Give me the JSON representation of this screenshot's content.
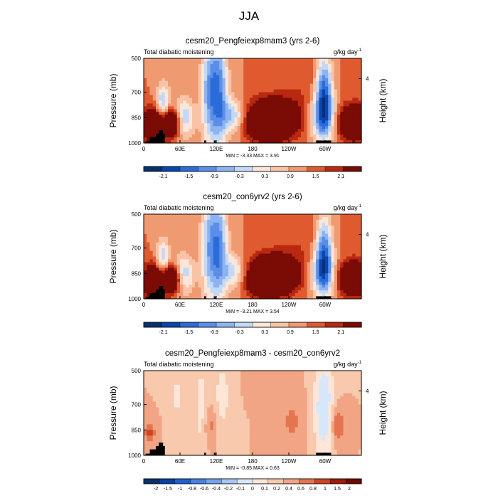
{
  "figure": {
    "title": "JJA",
    "colors": {
      "ramp11": [
        "#08306b",
        "#0a45b0",
        "#2b6cd9",
        "#5a8ee8",
        "#8db3f0",
        "#c4d9f7",
        "#fde6d8",
        "#f9c3a6",
        "#f09a72",
        "#e05a30",
        "#b8290f",
        "#7a0b05"
      ],
      "ramp13": [
        "#08306b",
        "#0a3ea8",
        "#1f5fd0",
        "#4a82e4",
        "#76a2ec",
        "#a8c5f4",
        "#d6e6fb",
        "#fde6d8",
        "#f8c9ad",
        "#f2a584",
        "#e57550",
        "#cc4422",
        "#a01a0a",
        "#6e0804"
      ],
      "land": "#000000"
    }
  },
  "chart_data": [
    {
      "type": "heatmap",
      "panel": "top",
      "title": "cesm20_Pengfeiexp8mam3 (yrs 2-6)",
      "left_label": "Total diabatic moistening",
      "units_base": "g/kg day",
      "units_exp": "-1",
      "ylabel": "Pressure (mb)",
      "ylabel_right": "Height (km)",
      "yticks": [
        "500",
        "700",
        "850",
        "1000"
      ],
      "ytick_values": [
        500,
        700,
        850,
        1000
      ],
      "yrange": [
        1000,
        500
      ],
      "right_ticks": [
        "4"
      ],
      "right_tick_pressure": 620,
      "xticks": [
        "0",
        "60E",
        "120E",
        "180",
        "120W",
        "60W"
      ],
      "xtick_values": [
        0,
        60,
        120,
        180,
        240,
        300
      ],
      "xrange": [
        0,
        360
      ],
      "stats": "MIN =  -3.33  MAX =  3.91",
      "colorbar_labels": [
        "-2.1",
        "-1.5",
        "-0.9",
        "-0.3",
        "0.3",
        "0.9",
        "1.5",
        "2.1"
      ],
      "colorbar_levels": [
        -2.4,
        -2.1,
        -1.8,
        -1.5,
        -1.2,
        -0.9,
        -0.6,
        -0.3,
        0,
        0.3,
        0.6,
        0.9,
        1.2,
        1.5,
        1.8,
        2.1,
        2.4
      ],
      "color_range": [
        -2.4,
        2.4
      ],
      "features": [
        {
          "lon": 45,
          "p": 880,
          "slon": 14,
          "sp": 60,
          "v": 2.3
        },
        {
          "lon": 15,
          "p": 900,
          "slon": 12,
          "sp": 70,
          "v": 1.8
        },
        {
          "lon": 32,
          "p": 780,
          "slon": 8,
          "sp": 90,
          "v": -1.4
        },
        {
          "lon": 65,
          "p": 860,
          "slon": 12,
          "sp": 80,
          "v": -1.6
        },
        {
          "lon": 108,
          "p": 700,
          "slon": 10,
          "sp": 230,
          "v": -1.3
        },
        {
          "lon": 125,
          "p": 700,
          "slon": 10,
          "sp": 230,
          "v": -1.6
        },
        {
          "lon": 148,
          "p": 840,
          "slon": 14,
          "sp": 70,
          "v": -1.2
        },
        {
          "lon": 215,
          "p": 850,
          "slon": 28,
          "sp": 75,
          "v": 2.5
        },
        {
          "lon": 205,
          "p": 910,
          "slon": 22,
          "sp": 50,
          "v": 1.5
        },
        {
          "lon": 298,
          "p": 700,
          "slon": 10,
          "sp": 150,
          "v": -2.1
        },
        {
          "lon": 296,
          "p": 860,
          "slon": 15,
          "sp": 90,
          "v": -1.3
        },
        {
          "lon": 348,
          "p": 880,
          "slon": 18,
          "sp": 70,
          "v": 2.2
        },
        {
          "lon": 270,
          "p": 620,
          "slon": 28,
          "sp": 120,
          "v": 0.3
        }
      ],
      "land_blocks": [
        [
          3,
          20,
          990
        ],
        [
          10,
          30,
          965
        ],
        [
          20,
          35,
          945
        ],
        [
          25,
          32,
          925
        ],
        [
          100,
          103,
          985
        ],
        [
          116,
          119,
          985
        ],
        [
          285,
          310,
          985
        ]
      ]
    },
    {
      "type": "heatmap",
      "panel": "middle",
      "title": "cesm20_con6yrv2 (yrs 2-6)",
      "left_label": "Total diabatic moistening",
      "units_base": "g/kg day",
      "units_exp": "-1",
      "ylabel": "Pressure (mb)",
      "ylabel_right": "Height (km)",
      "yticks": [
        "500",
        "700",
        "850",
        "1000"
      ],
      "ytick_values": [
        500,
        700,
        850,
        1000
      ],
      "yrange": [
        1000,
        500
      ],
      "right_ticks": [
        "4"
      ],
      "right_tick_pressure": 620,
      "xticks": [
        "0",
        "60E",
        "120E",
        "180",
        "120W",
        "60W"
      ],
      "xtick_values": [
        0,
        60,
        120,
        180,
        240,
        300
      ],
      "xrange": [
        0,
        360
      ],
      "stats": "MIN =  -3.21  MAX =  3.54",
      "colorbar_labels": [
        "-2.1",
        "-1.5",
        "-0.9",
        "-0.3",
        "0.3",
        "0.9",
        "1.5",
        "2.1"
      ],
      "colorbar_levels": [
        -2.4,
        -2.1,
        -1.8,
        -1.5,
        -1.2,
        -0.9,
        -0.6,
        -0.3,
        0,
        0.3,
        0.6,
        0.9,
        1.2,
        1.5,
        1.8,
        2.1,
        2.4
      ],
      "color_range": [
        -2.4,
        2.4
      ],
      "features": [
        {
          "lon": 45,
          "p": 880,
          "slon": 14,
          "sp": 60,
          "v": 2.2
        },
        {
          "lon": 15,
          "p": 900,
          "slon": 12,
          "sp": 70,
          "v": 1.7
        },
        {
          "lon": 32,
          "p": 780,
          "slon": 8,
          "sp": 90,
          "v": -1.3
        },
        {
          "lon": 65,
          "p": 860,
          "slon": 12,
          "sp": 80,
          "v": -1.5
        },
        {
          "lon": 108,
          "p": 700,
          "slon": 10,
          "sp": 230,
          "v": -1.2
        },
        {
          "lon": 125,
          "p": 700,
          "slon": 10,
          "sp": 230,
          "v": -1.5
        },
        {
          "lon": 150,
          "p": 840,
          "slon": 14,
          "sp": 70,
          "v": -1.1
        },
        {
          "lon": 215,
          "p": 850,
          "slon": 28,
          "sp": 75,
          "v": 2.4
        },
        {
          "lon": 205,
          "p": 910,
          "slon": 22,
          "sp": 50,
          "v": 1.4
        },
        {
          "lon": 298,
          "p": 720,
          "slon": 10,
          "sp": 150,
          "v": -1.9
        },
        {
          "lon": 296,
          "p": 860,
          "slon": 15,
          "sp": 90,
          "v": -1.2
        },
        {
          "lon": 348,
          "p": 880,
          "slon": 18,
          "sp": 70,
          "v": 2.1
        },
        {
          "lon": 270,
          "p": 620,
          "slon": 28,
          "sp": 120,
          "v": 0.3
        }
      ],
      "land_blocks": [
        [
          3,
          20,
          990
        ],
        [
          10,
          30,
          965
        ],
        [
          20,
          35,
          945
        ],
        [
          25,
          32,
          925
        ],
        [
          100,
          103,
          985
        ],
        [
          116,
          119,
          985
        ],
        [
          285,
          310,
          985
        ]
      ]
    },
    {
      "type": "heatmap",
      "panel": "bottom",
      "title": "cesm20_Pengfeiexp8mam3 - cesm20_con6yrv2",
      "left_label": "Total diabatic moistening",
      "units_base": "g/kg day",
      "units_exp": "-1",
      "ylabel": "Pressure (mb)",
      "ylabel_right": "Height (km)",
      "yticks": [
        "500",
        "700",
        "850",
        "1000"
      ],
      "ytick_values": [
        500,
        700,
        850,
        1000
      ],
      "yrange": [
        1000,
        500
      ],
      "right_ticks": [
        "4"
      ],
      "right_tick_pressure": 620,
      "xticks": [
        "0",
        "60E",
        "120E",
        "180",
        "120W",
        "60W"
      ],
      "xtick_values": [
        0,
        60,
        120,
        180,
        240,
        300
      ],
      "xrange": [
        0,
        360
      ],
      "stats": "MIN =  -0.85  MAX =  0.63",
      "colorbar_labels": [
        "-2",
        "-1.5",
        "-1",
        "-0.8",
        "-0.6",
        "-0.4",
        "-0.2",
        "-0.1",
        "0",
        "0.1",
        "0.2",
        "0.4",
        "0.6",
        "0.8",
        "1",
        "1.5",
        "2"
      ],
      "colorbar_levels": [
        -2,
        -1.5,
        -1,
        -0.8,
        -0.6,
        -0.4,
        -0.2,
        -0.1,
        0,
        0.1,
        0.2,
        0.4,
        0.6,
        0.8,
        1,
        1.5,
        2
      ],
      "color_range": [
        -0.8,
        0.8
      ],
      "features": [
        {
          "lon": 298,
          "p": 720,
          "slon": 12,
          "sp": 220,
          "v": -0.3
        },
        {
          "lon": 95,
          "p": 720,
          "slon": 8,
          "sp": 200,
          "v": -0.15
        },
        {
          "lon": 130,
          "p": 650,
          "slon": 10,
          "sp": 150,
          "v": -0.15
        },
        {
          "lon": 55,
          "p": 650,
          "slon": 8,
          "sp": 130,
          "v": -0.12
        },
        {
          "lon": 320,
          "p": 820,
          "slon": 8,
          "sp": 80,
          "v": 0.22
        },
        {
          "lon": 10,
          "p": 870,
          "slon": 6,
          "sp": 40,
          "v": 0.25
        },
        {
          "lon": 110,
          "p": 820,
          "slon": 8,
          "sp": 80,
          "v": 0.14
        },
        {
          "lon": 195,
          "p": 560,
          "slon": 12,
          "sp": 60,
          "v": 0.1
        },
        {
          "lon": 245,
          "p": 800,
          "slon": 15,
          "sp": 120,
          "v": 0.12
        }
      ],
      "land_blocks": [
        [
          3,
          20,
          990
        ],
        [
          10,
          30,
          965
        ],
        [
          20,
          35,
          945
        ],
        [
          25,
          32,
          925
        ],
        [
          100,
          103,
          985
        ],
        [
          116,
          119,
          985
        ],
        [
          285,
          310,
          985
        ]
      ]
    }
  ]
}
